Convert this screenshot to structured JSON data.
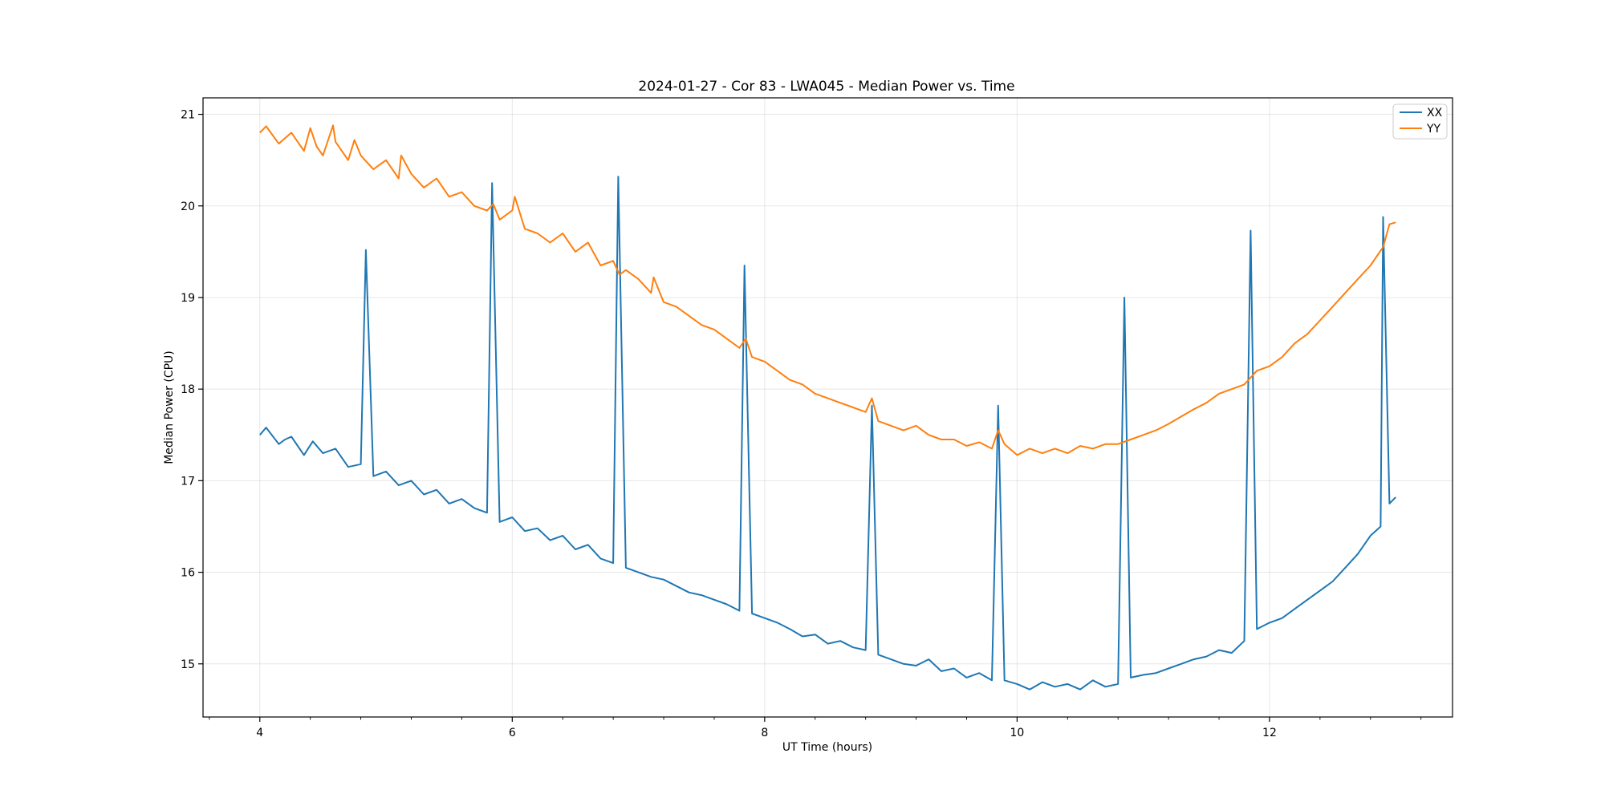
{
  "chart_data": {
    "type": "line",
    "title": "2024-01-27 - Cor 83 - LWA045 - Median Power vs. Time",
    "xlabel": "UT Time (hours)",
    "ylabel": "Median Power (CPU)",
    "xlim": [
      3.55,
      13.45
    ],
    "ylim": [
      14.42,
      21.18
    ],
    "x_ticks": [
      4,
      6,
      8,
      10,
      12
    ],
    "x_tick_labels": [
      "4",
      "6",
      "8",
      "10",
      "12"
    ],
    "x_minor_step": 0.4,
    "y_ticks": [
      15,
      16,
      17,
      18,
      19,
      20,
      21
    ],
    "y_tick_labels": [
      "15",
      "16",
      "17",
      "18",
      "19",
      "20",
      "21"
    ],
    "grid": true,
    "legend_position": "top-right",
    "series": [
      {
        "name": "XX",
        "color": "#1f77b4",
        "x": [
          4.0,
          4.05,
          4.15,
          4.2,
          4.25,
          4.35,
          4.42,
          4.5,
          4.6,
          4.7,
          4.8,
          4.84,
          4.9,
          5.0,
          5.1,
          5.2,
          5.3,
          5.4,
          5.5,
          5.6,
          5.7,
          5.8,
          5.84,
          5.9,
          6.0,
          6.1,
          6.2,
          6.3,
          6.4,
          6.5,
          6.6,
          6.7,
          6.8,
          6.84,
          6.9,
          7.0,
          7.1,
          7.2,
          7.3,
          7.4,
          7.5,
          7.6,
          7.7,
          7.8,
          7.84,
          7.9,
          8.0,
          8.1,
          8.2,
          8.3,
          8.4,
          8.5,
          8.6,
          8.7,
          8.8,
          8.85,
          8.9,
          9.0,
          9.1,
          9.2,
          9.3,
          9.4,
          9.5,
          9.6,
          9.7,
          9.8,
          9.85,
          9.9,
          10.0,
          10.1,
          10.2,
          10.3,
          10.4,
          10.5,
          10.6,
          10.7,
          10.8,
          10.85,
          10.9,
          11.0,
          11.1,
          11.2,
          11.3,
          11.4,
          11.5,
          11.6,
          11.7,
          11.8,
          11.85,
          11.9,
          12.0,
          12.1,
          12.2,
          12.3,
          12.4,
          12.5,
          12.6,
          12.7,
          12.8,
          12.88,
          12.9,
          12.95,
          13.0
        ],
        "y": [
          17.5,
          17.58,
          17.4,
          17.45,
          17.48,
          17.28,
          17.43,
          17.3,
          17.35,
          17.15,
          17.18,
          19.52,
          17.05,
          17.1,
          16.95,
          17.0,
          16.85,
          16.9,
          16.75,
          16.8,
          16.7,
          16.65,
          20.25,
          16.55,
          16.6,
          16.45,
          16.48,
          16.35,
          16.4,
          16.25,
          16.3,
          16.15,
          16.1,
          20.32,
          16.05,
          16.0,
          15.95,
          15.92,
          15.85,
          15.78,
          15.75,
          15.7,
          15.65,
          15.58,
          19.35,
          15.55,
          15.5,
          15.45,
          15.38,
          15.3,
          15.32,
          15.22,
          15.25,
          15.18,
          15.15,
          17.82,
          15.1,
          15.05,
          15.0,
          14.98,
          15.05,
          14.92,
          14.95,
          14.85,
          14.9,
          14.82,
          17.82,
          14.82,
          14.78,
          14.72,
          14.8,
          14.75,
          14.78,
          14.72,
          14.82,
          14.75,
          14.78,
          19.0,
          14.85,
          14.88,
          14.9,
          14.95,
          15.0,
          15.05,
          15.08,
          15.15,
          15.12,
          15.25,
          19.73,
          15.38,
          15.45,
          15.5,
          15.6,
          15.7,
          15.8,
          15.9,
          16.05,
          16.2,
          16.4,
          16.5,
          19.88,
          16.75,
          16.82
        ]
      },
      {
        "name": "YY",
        "color": "#ff7f0e",
        "x": [
          4.0,
          4.05,
          4.15,
          4.25,
          4.35,
          4.4,
          4.45,
          4.5,
          4.58,
          4.6,
          4.7,
          4.75,
          4.8,
          4.9,
          5.0,
          5.1,
          5.12,
          5.2,
          5.3,
          5.4,
          5.5,
          5.6,
          5.7,
          5.8,
          5.85,
          5.9,
          6.0,
          6.02,
          6.1,
          6.2,
          6.3,
          6.4,
          6.5,
          6.6,
          6.7,
          6.8,
          6.85,
          6.9,
          7.0,
          7.1,
          7.12,
          7.2,
          7.3,
          7.4,
          7.5,
          7.6,
          7.7,
          7.8,
          7.85,
          7.9,
          8.0,
          8.1,
          8.2,
          8.3,
          8.4,
          8.5,
          8.6,
          8.7,
          8.8,
          8.85,
          8.9,
          9.0,
          9.1,
          9.2,
          9.3,
          9.4,
          9.5,
          9.6,
          9.7,
          9.8,
          9.85,
          9.9,
          10.0,
          10.1,
          10.2,
          10.3,
          10.4,
          10.5,
          10.6,
          10.7,
          10.8,
          10.9,
          11.0,
          11.1,
          11.2,
          11.3,
          11.4,
          11.5,
          11.6,
          11.7,
          11.8,
          11.9,
          12.0,
          12.1,
          12.2,
          12.3,
          12.4,
          12.5,
          12.6,
          12.7,
          12.8,
          12.9,
          12.95,
          13.0
        ],
        "y": [
          20.8,
          20.87,
          20.68,
          20.8,
          20.6,
          20.85,
          20.65,
          20.55,
          20.88,
          20.7,
          20.5,
          20.72,
          20.55,
          20.4,
          20.5,
          20.3,
          20.55,
          20.35,
          20.2,
          20.3,
          20.1,
          20.15,
          20.0,
          19.95,
          20.02,
          19.85,
          19.95,
          20.1,
          19.75,
          19.7,
          19.6,
          19.7,
          19.5,
          19.6,
          19.35,
          19.4,
          19.25,
          19.3,
          19.2,
          19.05,
          19.22,
          18.95,
          18.9,
          18.8,
          18.7,
          18.65,
          18.55,
          18.45,
          18.55,
          18.35,
          18.3,
          18.2,
          18.1,
          18.05,
          17.95,
          17.9,
          17.85,
          17.8,
          17.75,
          17.9,
          17.65,
          17.6,
          17.55,
          17.6,
          17.5,
          17.45,
          17.45,
          17.38,
          17.42,
          17.35,
          17.55,
          17.4,
          17.28,
          17.35,
          17.3,
          17.35,
          17.3,
          17.38,
          17.35,
          17.4,
          17.4,
          17.45,
          17.5,
          17.55,
          17.62,
          17.7,
          17.78,
          17.85,
          17.95,
          18.0,
          18.05,
          18.2,
          18.25,
          18.35,
          18.5,
          18.6,
          18.75,
          18.9,
          19.05,
          19.2,
          19.35,
          19.55,
          19.8,
          19.82
        ]
      }
    ]
  }
}
